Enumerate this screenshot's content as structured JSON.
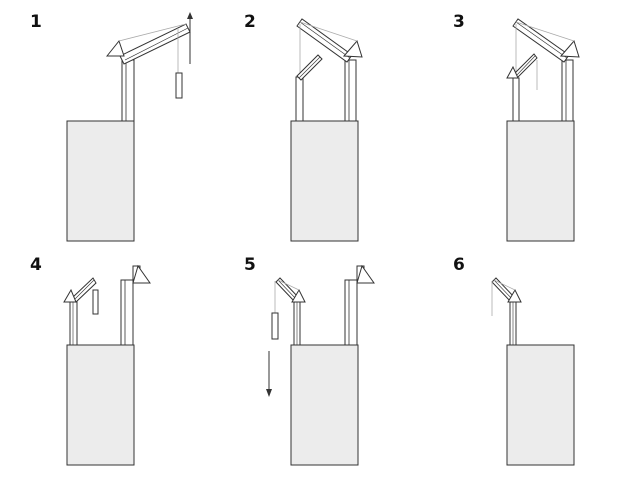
{
  "steps": [
    {
      "number": "1",
      "arrow": "up"
    },
    {
      "number": "2",
      "arrow": "none"
    },
    {
      "number": "3",
      "arrow": "none"
    },
    {
      "number": "4",
      "arrow": "none"
    },
    {
      "number": "5",
      "arrow": "down"
    },
    {
      "number": "6",
      "arrow": "none"
    }
  ],
  "colors": {
    "building_fill": "#ececec",
    "stroke": "#333333",
    "rope": "#aaaaaa",
    "background": "#ffffff"
  }
}
